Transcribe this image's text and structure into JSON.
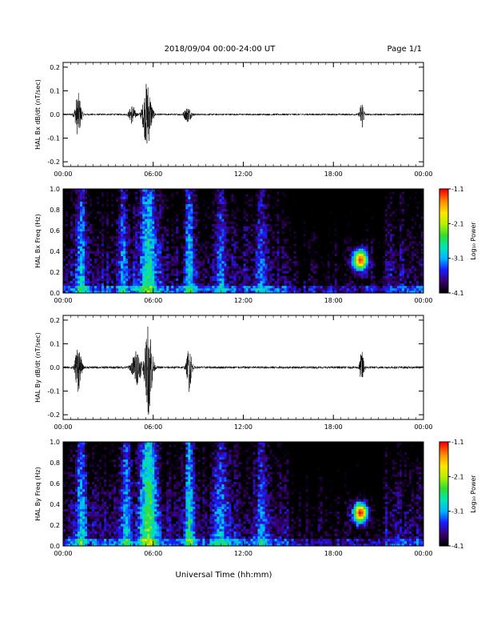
{
  "header": {
    "date_range": "2018/09/04  00:00-24:00 UT",
    "page": "Page 1/1"
  },
  "footer": {
    "xlabel": "Universal Time (hh:mm)"
  },
  "colorbar": {
    "label": "Log₁₀ Power",
    "ticks": [
      "-1.1",
      "-2.1",
      "-3.1",
      "-4.1"
    ],
    "range": [
      -4.1,
      -1.1
    ],
    "colors": [
      "#000000",
      "#3a0070",
      "#1a1aff",
      "#00b4ff",
      "#00e6b4",
      "#32dc32",
      "#b4f000",
      "#ffe600",
      "#ff8c00",
      "#ff0000"
    ]
  },
  "chart_data": [
    {
      "type": "line",
      "ylabel": "HAL Bx dB/dt (nT/sec)",
      "xlim": [
        0,
        24
      ],
      "ylim": [
        -0.22,
        0.22
      ],
      "yticks": [
        "0.2",
        "0.1",
        "0.0",
        "-0.1",
        "-0.2"
      ],
      "xticks": [
        "00:00",
        "06:00",
        "12:00",
        "18:00",
        "00:00"
      ],
      "bursts": [
        {
          "t": 1.0,
          "amp": 0.09,
          "width": 0.5
        },
        {
          "t": 4.6,
          "amp": 0.04,
          "width": 0.5
        },
        {
          "t": 5.6,
          "amp": 0.14,
          "width": 0.7
        },
        {
          "t": 8.3,
          "amp": 0.03,
          "width": 0.6
        },
        {
          "t": 19.9,
          "amp": 0.06,
          "width": 0.35
        }
      ],
      "noise_level": 0.004
    },
    {
      "type": "heatmap",
      "ylabel": "HAL Bx Freq (Hz)",
      "xlim": [
        0,
        24
      ],
      "ylim": [
        0.0,
        1.0
      ],
      "yticks": [
        "1.0",
        "0.8",
        "0.6",
        "0.4",
        "0.2",
        "0.0"
      ],
      "xticks": [
        "00:00",
        "06:00",
        "12:00",
        "18:00",
        "00:00"
      ],
      "zlim": [
        -4.1,
        -1.1
      ],
      "active_bands": [
        {
          "t": 1.2,
          "width": 0.7,
          "level": -2.9
        },
        {
          "t": 4.0,
          "width": 0.6,
          "level": -3.0
        },
        {
          "t": 5.7,
          "width": 1.2,
          "level": -2.6
        },
        {
          "t": 8.4,
          "width": 0.6,
          "level": -2.8
        },
        {
          "t": 10.5,
          "width": 0.8,
          "level": -3.1
        },
        {
          "t": 13.2,
          "width": 0.8,
          "level": -3.2
        }
      ],
      "hotspot": {
        "t": 19.8,
        "f": 0.32,
        "level": -1.2
      }
    },
    {
      "type": "line",
      "ylabel": "HAL By dB/dt (nT/sec)",
      "xlim": [
        0,
        24
      ],
      "ylim": [
        -0.22,
        0.22
      ],
      "yticks": [
        "0.2",
        "0.1",
        "0.0",
        "-0.1",
        "-0.2"
      ],
      "xticks": [
        "00:00",
        "06:00",
        "12:00",
        "18:00",
        "00:00"
      ],
      "bursts": [
        {
          "t": 1.0,
          "amp": 0.1,
          "width": 0.5
        },
        {
          "t": 4.9,
          "amp": 0.07,
          "width": 0.8
        },
        {
          "t": 5.7,
          "amp": 0.2,
          "width": 0.6
        },
        {
          "t": 8.4,
          "amp": 0.1,
          "width": 0.4
        },
        {
          "t": 19.9,
          "amp": 0.07,
          "width": 0.35
        }
      ],
      "noise_level": 0.005
    },
    {
      "type": "heatmap",
      "ylabel": "HAL By Freq (Hz)",
      "xlim": [
        0,
        24
      ],
      "ylim": [
        0.0,
        1.0
      ],
      "yticks": [
        "1.0",
        "0.8",
        "0.6",
        "0.4",
        "0.2",
        "0.0"
      ],
      "xticks": [
        "00:00",
        "06:00",
        "12:00",
        "18:00",
        "00:00"
      ],
      "zlim": [
        -4.1,
        -1.1
      ],
      "active_bands": [
        {
          "t": 1.2,
          "width": 0.7,
          "level": -2.8
        },
        {
          "t": 4.2,
          "width": 0.7,
          "level": -2.9
        },
        {
          "t": 5.7,
          "width": 1.2,
          "level": -2.3
        },
        {
          "t": 8.4,
          "width": 0.6,
          "level": -2.6
        },
        {
          "t": 10.5,
          "width": 1.0,
          "level": -3.0
        },
        {
          "t": 13.2,
          "width": 0.8,
          "level": -3.1
        }
      ],
      "hotspot": {
        "t": 19.8,
        "f": 0.32,
        "level": -1.1
      }
    }
  ]
}
